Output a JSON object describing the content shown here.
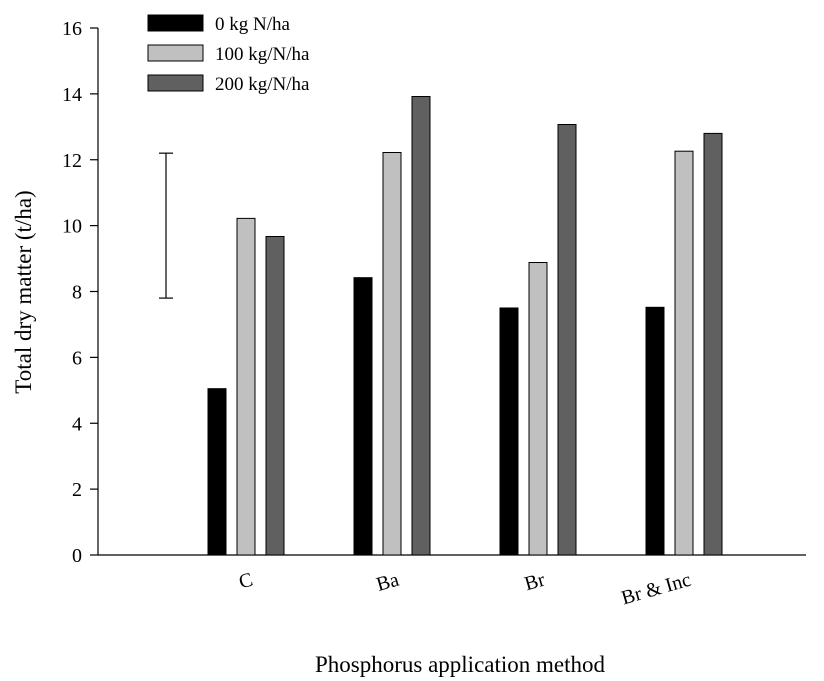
{
  "chart_data": {
    "type": "bar",
    "xlabel": "Phosphorus application method",
    "ylabel": "Total dry matter (t/ha)",
    "ylim": [
      0,
      16
    ],
    "yticks": [
      0,
      2,
      4,
      6,
      8,
      10,
      12,
      14,
      16
    ],
    "categories": [
      "C",
      "Ba",
      "Br",
      "Br & Inc"
    ],
    "series": [
      {
        "name": "0 kg N/ha",
        "color": "#000000",
        "values": [
          5.05,
          8.42,
          7.5,
          7.52
        ]
      },
      {
        "name": "100 kg/N/ha",
        "color": "#c0c0c0",
        "values": [
          10.22,
          12.22,
          8.88,
          12.26
        ]
      },
      {
        "name": "200 kg/N/ha",
        "color": "#606060",
        "values": [
          9.67,
          13.92,
          13.07,
          12.8
        ]
      }
    ],
    "error_bar": {
      "low": 7.8,
      "high": 12.2
    },
    "legend_position": "top-left",
    "grid": false
  }
}
